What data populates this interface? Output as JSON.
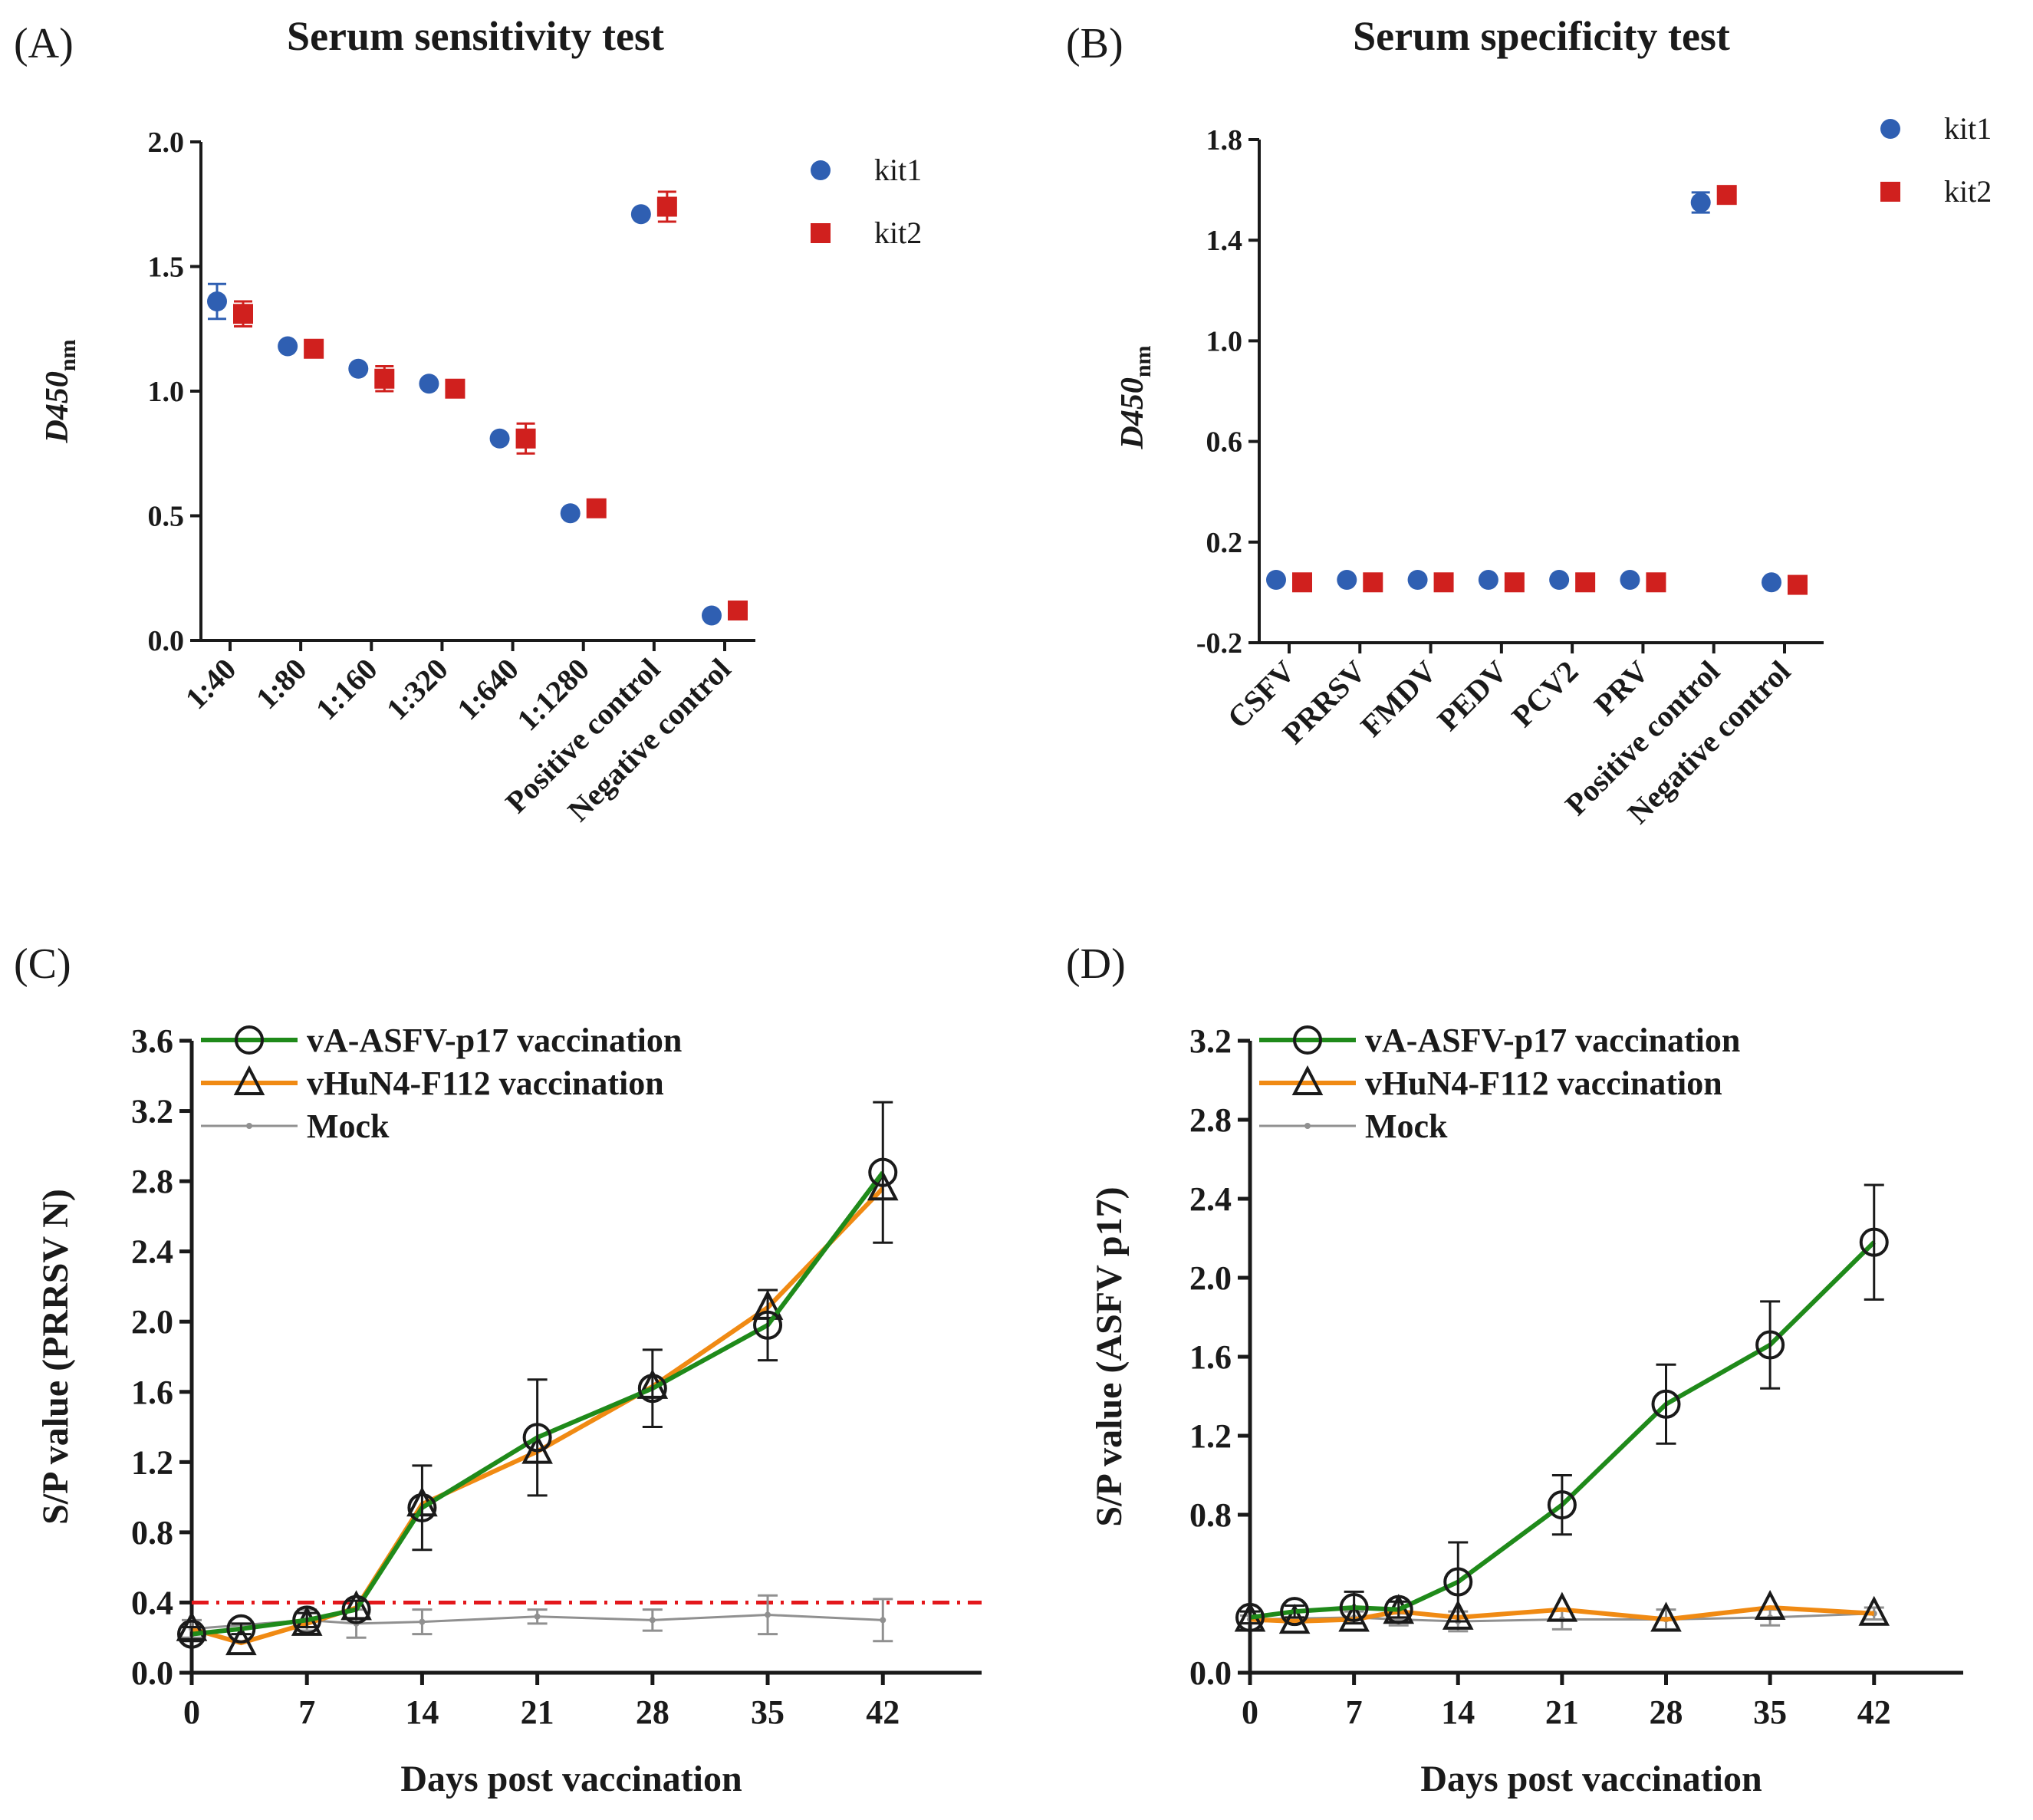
{
  "colors": {
    "kit1": "#2f5fb2",
    "kit2": "#d0201e",
    "vaccine": "#1f8a1a",
    "vhun": "#f08a13",
    "mock": "#909090",
    "cutoff": "#e3171b",
    "marker": "#1a1a1a"
  },
  "chart_data": [
    {
      "panel_label": "(A)",
      "type": "scatter",
      "title": "Serum sensitivity test",
      "xlabel": "",
      "ylabel_main": "D450",
      "ylabel_sub": "nm",
      "categories": [
        "1:40",
        "1:80",
        "1:160",
        "1:320",
        "1:640",
        "1:1280",
        "Positive control",
        "Negative control"
      ],
      "ylim": [
        0,
        2.0
      ],
      "yticks": [
        "0.0",
        "0.5",
        "1.0",
        "1.5",
        "2.0"
      ],
      "legend_position": "top-right",
      "series": [
        {
          "name": "kit1",
          "marker": "circle",
          "values": [
            1.36,
            1.18,
            1.09,
            1.03,
            0.81,
            0.51,
            1.71,
            0.1
          ],
          "errors": [
            0.07,
            0.01,
            0.01,
            0.01,
            0.01,
            0.01,
            0.01,
            0.005
          ]
        },
        {
          "name": "kit2",
          "marker": "square",
          "values": [
            1.31,
            1.17,
            1.05,
            1.01,
            0.81,
            0.53,
            1.74,
            0.12
          ],
          "errors": [
            0.05,
            0.01,
            0.05,
            0.01,
            0.06,
            0.01,
            0.06,
            0.005
          ]
        }
      ]
    },
    {
      "panel_label": "(B)",
      "type": "scatter",
      "title": "Serum specificity test",
      "xlabel": "",
      "ylabel_main": "D450",
      "ylabel_sub": "nm",
      "categories": [
        "CSFV",
        "PRRSV",
        "FMDV",
        "PEDV",
        "PCV2",
        "PRV",
        "Positive control",
        "Negative control"
      ],
      "ylim": [
        -0.2,
        1.8
      ],
      "yticks": [
        "-0.2",
        "0.2",
        "0.6",
        "1.0",
        "1.4",
        "1.8"
      ],
      "legend_position": "top-right",
      "series": [
        {
          "name": "kit1",
          "marker": "circle",
          "values": [
            0.05,
            0.05,
            0.05,
            0.05,
            0.05,
            0.05,
            1.55,
            0.04
          ],
          "errors": [
            0.005,
            0.005,
            0.005,
            0.005,
            0.005,
            0.005,
            0.04,
            0.005
          ]
        },
        {
          "name": "kit2",
          "marker": "square",
          "values": [
            0.04,
            0.04,
            0.04,
            0.04,
            0.04,
            0.04,
            1.58,
            0.03
          ],
          "errors": [
            0.005,
            0.005,
            0.005,
            0.005,
            0.005,
            0.005,
            0.03,
            0.005
          ]
        }
      ]
    },
    {
      "panel_label": "(C)",
      "type": "line",
      "title": "",
      "xlabel": "Days post vaccination",
      "ylabel": "S/P value (PRRSV N)",
      "xlim": [
        0,
        48
      ],
      "xticks": [
        0,
        7,
        14,
        21,
        28,
        35,
        42
      ],
      "ylim": [
        0,
        3.6
      ],
      "yticks": [
        "0.0",
        "0.4",
        "0.8",
        "1.2",
        "1.6",
        "2.0",
        "2.4",
        "2.8",
        "3.2",
        "3.6"
      ],
      "legend_position": "top-left",
      "cutoff": 0.4,
      "series": [
        {
          "name": "vA-ASFV-p17 vaccination",
          "marker": "circle",
          "x": [
            0,
            3,
            7,
            10,
            14,
            21,
            28,
            35,
            42
          ],
          "values": [
            0.22,
            0.25,
            0.3,
            0.36,
            0.94,
            1.34,
            1.62,
            1.98,
            2.85
          ],
          "errors": [
            0.04,
            0.03,
            0.04,
            0.05,
            0.24,
            0.33,
            0.22,
            0.2,
            0.4
          ]
        },
        {
          "name": "vHuN4-F112 vaccination",
          "marker": "triangle",
          "x": [
            0,
            3,
            7,
            10,
            14,
            21,
            28,
            35,
            42
          ],
          "values": [
            0.25,
            0.17,
            0.28,
            0.37,
            0.96,
            1.26,
            1.63,
            2.08,
            2.76
          ],
          "errors": [
            0.04,
            0.03,
            0.04,
            0.05,
            0.2,
            0.42,
            0.2,
            0.16,
            0.5
          ]
        },
        {
          "name": "Mock",
          "marker": "dot",
          "x": [
            0,
            7,
            10,
            14,
            21,
            28,
            35,
            42
          ],
          "values": [
            0.25,
            0.3,
            0.28,
            0.29,
            0.32,
            0.3,
            0.33,
            0.3
          ],
          "errors": [
            0.05,
            0.06,
            0.08,
            0.07,
            0.04,
            0.06,
            0.11,
            0.12
          ]
        }
      ]
    },
    {
      "panel_label": "(D)",
      "type": "line",
      "title": "",
      "xlabel": "Days post vaccination",
      "ylabel": "S/P value (ASFV p17)",
      "xlim": [
        0,
        48
      ],
      "xticks": [
        0,
        7,
        14,
        21,
        28,
        35,
        42
      ],
      "ylim": [
        0,
        3.2
      ],
      "yticks": [
        "0.0",
        "0.8",
        "1.2",
        "1.6",
        "2.0",
        "2.4",
        "2.8",
        "3.2"
      ],
      "legend_position": "top-left",
      "series": [
        {
          "name": "vA-ASFV-p17 vaccination",
          "marker": "circle",
          "x": [
            0,
            3,
            7,
            10,
            14,
            21,
            28,
            35,
            42
          ],
          "values": [
            0.28,
            0.31,
            0.33,
            0.32,
            0.46,
            0.85,
            1.36,
            1.66,
            2.18
          ],
          "errors": [
            0.03,
            0.03,
            0.08,
            0.04,
            0.2,
            0.15,
            0.2,
            0.22,
            0.29
          ]
        },
        {
          "name": "vHuN4-F112 vaccination",
          "marker": "triangle",
          "x": [
            0,
            3,
            7,
            10,
            14,
            21,
            28,
            35,
            42
          ],
          "values": [
            0.27,
            0.26,
            0.27,
            0.31,
            0.28,
            0.32,
            0.27,
            0.33,
            0.3
          ],
          "errors": [
            0.03,
            0.03,
            0.03,
            0.03,
            0.05,
            0.04,
            0.05,
            0.03,
            0.03
          ]
        },
        {
          "name": "Mock",
          "marker": "dot",
          "x": [
            0,
            7,
            10,
            14,
            21,
            28,
            35,
            42
          ],
          "values": [
            0.27,
            0.28,
            0.27,
            0.26,
            0.27,
            0.27,
            0.28,
            0.3
          ],
          "errors": [
            0.02,
            0.03,
            0.03,
            0.05,
            0.05,
            0.05,
            0.04,
            0.03
          ]
        }
      ]
    }
  ]
}
